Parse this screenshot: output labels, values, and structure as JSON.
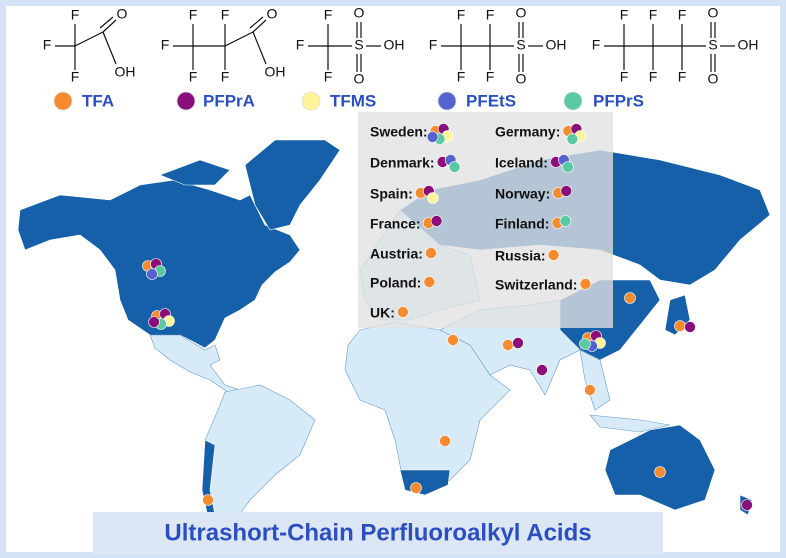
{
  "structures": [
    {
      "atoms": [
        "F",
        "F",
        "F",
        "O",
        "OH"
      ]
    },
    {
      "atoms": [
        "F",
        "F",
        "F",
        "F",
        "F",
        "O",
        "OH"
      ]
    },
    {
      "atoms": [
        "F",
        "F",
        "F",
        "S",
        "O",
        "O",
        "OH"
      ]
    },
    {
      "atoms": [
        "F",
        "F",
        "F",
        "F",
        "F",
        "S",
        "O",
        "O",
        "OH"
      ]
    },
    {
      "atoms": [
        "F",
        "F",
        "F",
        "F",
        "F",
        "F",
        "F",
        "S",
        "O",
        "O",
        "OH"
      ]
    }
  ],
  "compounds": [
    {
      "name": "TFA",
      "color": "#f58a2e"
    },
    {
      "name": "PFPrA",
      "color": "#8b0f7a"
    },
    {
      "name": "TFMS",
      "color": "#fff39a"
    },
    {
      "name": "PFEtS",
      "color": "#5563cf"
    },
    {
      "name": "PFPrS",
      "color": "#5ac8a0"
    }
  ],
  "countries": [
    "Sweden:",
    "Germany:",
    "Denmark:",
    "Iceland:",
    "Spain:",
    "Norway:",
    "France:",
    "Finland:",
    "Austria:",
    "Russia:",
    "Poland:",
    "Switzerland:",
    "UK:"
  ],
  "title": "Ultrashort-Chain Perfluoroalkyl Acids"
}
